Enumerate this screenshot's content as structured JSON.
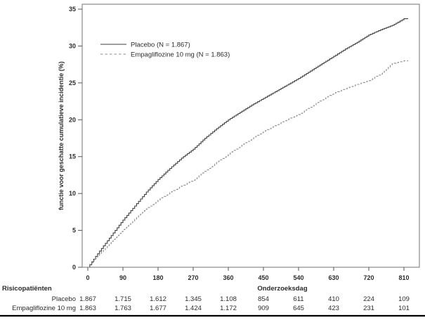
{
  "chart_data": {
    "type": "line",
    "subtype": "kaplan-meier-step",
    "title": "",
    "xlabel": "Onderzoeksdag",
    "ylabel": "functie voor geschatte cumulatieve incidentie (%)",
    "xlim": [
      0,
      810
    ],
    "ylim": [
      0,
      35
    ],
    "x_ticks": [
      0,
      90,
      180,
      270,
      360,
      450,
      540,
      630,
      720,
      810
    ],
    "y_ticks": [
      0,
      5,
      10,
      15,
      20,
      25,
      30,
      35
    ],
    "grid": "off",
    "legend_position": "inside-top-left",
    "colors": {
      "frame": "#8a8a8a",
      "tick": "#555555",
      "text": "#2b2b2b",
      "placebo_line": "#3f3f3f",
      "empagliflozine_line": "#8c8c8c",
      "bottom_rule": "#000000"
    },
    "series": [
      {
        "name": "Placebo (N = 1.867)",
        "style": "solid",
        "x": [
          0,
          30,
          60,
          90,
          120,
          150,
          180,
          210,
          240,
          270,
          300,
          330,
          360,
          390,
          420,
          450,
          480,
          510,
          540,
          570,
          600,
          630,
          660,
          690,
          720,
          750,
          780,
          810
        ],
        "values": [
          0,
          2.2,
          4.3,
          6.4,
          8.3,
          10.2,
          11.9,
          13.4,
          14.8,
          16.0,
          17.5,
          18.8,
          20.0,
          21.0,
          22.0,
          22.9,
          23.8,
          24.7,
          25.6,
          26.6,
          27.6,
          28.6,
          29.6,
          30.5,
          31.5,
          32.2,
          32.8,
          33.7
        ]
      },
      {
        "name": "Empagliflozine 10 mg (N = 1.863)",
        "style": "dashed",
        "x": [
          0,
          30,
          60,
          90,
          120,
          150,
          180,
          210,
          240,
          270,
          300,
          330,
          360,
          390,
          420,
          450,
          480,
          510,
          540,
          570,
          600,
          630,
          660,
          690,
          720,
          750,
          780,
          810
        ],
        "values": [
          0,
          1.8,
          3.5,
          5.1,
          6.5,
          7.9,
          9.1,
          10.1,
          11.0,
          11.8,
          13.0,
          14.2,
          15.3,
          16.4,
          17.4,
          18.4,
          19.2,
          20.0,
          20.7,
          21.7,
          22.7,
          23.6,
          24.2,
          24.8,
          25.3,
          26.2,
          27.6,
          28.0
        ]
      }
    ],
    "risk_table": {
      "title": "Risicopatiënten",
      "rows": [
        {
          "label": "Placebo",
          "values": [
            "1.867",
            "1.715",
            "1.612",
            "1.345",
            "1.108",
            "854",
            "611",
            "410",
            "224",
            "109"
          ]
        },
        {
          "label": "Empagliflozine 10 mg",
          "values": [
            "1.863",
            "1.763",
            "1.677",
            "1.424",
            "1.172",
            "909",
            "645",
            "423",
            "231",
            "101"
          ]
        }
      ]
    }
  }
}
